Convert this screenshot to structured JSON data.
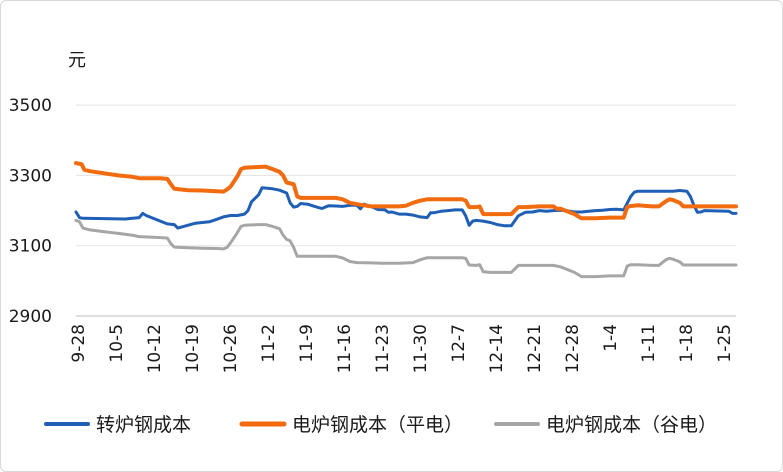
{
  "chart_data": {
    "type": "line",
    "title": "",
    "xlabel": "",
    "ylabel": "元",
    "ylim": [
      2900,
      3600
    ],
    "yticks": [
      2900,
      3100,
      3300,
      3500
    ],
    "x_categories": [
      "9-28",
      "10-5",
      "10-12",
      "10-19",
      "10-26",
      "11-2",
      "11-9",
      "11-16",
      "11-23",
      "11-30",
      "12-7",
      "12-14",
      "12-21",
      "12-28",
      "1-4",
      "1-11",
      "1-18",
      "1-25"
    ],
    "x_range": [
      0,
      94
    ],
    "legend_position": "bottom",
    "colors": {
      "bof": "#1f5fb5",
      "eaf_flat": "#f26b0f",
      "eaf_valley": "#a6a6a6"
    },
    "series": [
      {
        "name": "转炉钢成本",
        "color": "#1f5fb5",
        "points": [
          [
            0,
            3196
          ],
          [
            0.5,
            3180
          ],
          [
            1,
            3178
          ],
          [
            7,
            3176
          ],
          [
            9,
            3180
          ],
          [
            9.5,
            3192
          ],
          [
            10,
            3186
          ],
          [
            12,
            3170
          ],
          [
            13,
            3162
          ],
          [
            14,
            3160
          ],
          [
            14.5,
            3150
          ],
          [
            17,
            3164
          ],
          [
            18,
            3166
          ],
          [
            19,
            3168
          ],
          [
            20,
            3175
          ],
          [
            21,
            3182
          ],
          [
            22,
            3186
          ],
          [
            23,
            3186
          ],
          [
            24,
            3190
          ],
          [
            24.5,
            3200
          ],
          [
            25,
            3225
          ],
          [
            26,
            3245
          ],
          [
            26.5,
            3265
          ],
          [
            28,
            3262
          ],
          [
            29,
            3258
          ],
          [
            30,
            3250
          ],
          [
            30.5,
            3222
          ],
          [
            31,
            3210
          ],
          [
            31.5,
            3212
          ],
          [
            32,
            3220
          ],
          [
            33,
            3218
          ],
          [
            34,
            3212
          ],
          [
            35,
            3206
          ],
          [
            36,
            3214
          ],
          [
            37,
            3213
          ],
          [
            38,
            3212
          ],
          [
            39,
            3215
          ],
          [
            40,
            3215
          ],
          [
            40.5,
            3205
          ],
          [
            41,
            3218
          ],
          [
            42,
            3212
          ],
          [
            43,
            3203
          ],
          [
            44,
            3202
          ],
          [
            44.5,
            3195
          ],
          [
            45,
            3196
          ],
          [
            46,
            3190
          ],
          [
            47,
            3190
          ],
          [
            48,
            3187
          ],
          [
            49,
            3182
          ],
          [
            50,
            3180
          ],
          [
            50.5,
            3194
          ],
          [
            51,
            3194
          ],
          [
            52,
            3198
          ],
          [
            53,
            3200
          ],
          [
            54,
            3202
          ],
          [
            55,
            3202
          ],
          [
            55.5,
            3185
          ],
          [
            56,
            3158
          ],
          [
            56.5,
            3170
          ],
          [
            57,
            3172
          ],
          [
            58,
            3170
          ],
          [
            59,
            3166
          ],
          [
            60,
            3160
          ],
          [
            61,
            3157
          ],
          [
            62,
            3157
          ],
          [
            63,
            3185
          ],
          [
            64,
            3195
          ],
          [
            65,
            3196
          ],
          [
            66,
            3200
          ],
          [
            67,
            3198
          ],
          [
            68,
            3200
          ],
          [
            69,
            3201
          ],
          [
            70,
            3199
          ],
          [
            71,
            3196
          ],
          [
            72,
            3196
          ],
          [
            73,
            3198
          ],
          [
            74,
            3200
          ],
          [
            75,
            3201
          ],
          [
            76,
            3203
          ],
          [
            77,
            3204
          ],
          [
            78,
            3202
          ],
          [
            79,
            3240
          ],
          [
            79.5,
            3252
          ],
          [
            80,
            3255
          ],
          [
            83,
            3255
          ],
          [
            85,
            3255
          ],
          [
            86,
            3257
          ],
          [
            87,
            3255
          ],
          [
            87.5,
            3240
          ],
          [
            88,
            3215
          ],
          [
            88.5,
            3195
          ],
          [
            89,
            3196
          ],
          [
            89.5,
            3200
          ],
          [
            93,
            3198
          ],
          [
            93.5,
            3192
          ],
          [
            94,
            3192
          ]
        ]
      },
      {
        "name": "电炉钢成本（平电）",
        "color": "#f26b0f",
        "points": [
          [
            0,
            3335
          ],
          [
            0.8,
            3332
          ],
          [
            1.2,
            3316
          ],
          [
            2,
            3312
          ],
          [
            4,
            3306
          ],
          [
            6,
            3300
          ],
          [
            8,
            3296
          ],
          [
            9,
            3292
          ],
          [
            11,
            3292
          ],
          [
            12,
            3292
          ],
          [
            13,
            3290
          ],
          [
            13.5,
            3275
          ],
          [
            14,
            3262
          ],
          [
            16,
            3258
          ],
          [
            18,
            3257
          ],
          [
            20,
            3255
          ],
          [
            21,
            3254
          ],
          [
            21.5,
            3260
          ],
          [
            22,
            3268
          ],
          [
            23,
            3298
          ],
          [
            23.5,
            3318
          ],
          [
            24,
            3322
          ],
          [
            26,
            3324
          ],
          [
            27,
            3325
          ],
          [
            28,
            3318
          ],
          [
            29,
            3310
          ],
          [
            29.5,
            3300
          ],
          [
            30,
            3280
          ],
          [
            31,
            3275
          ],
          [
            31.5,
            3240
          ],
          [
            32,
            3236
          ],
          [
            34,
            3236
          ],
          [
            37,
            3236
          ],
          [
            38,
            3232
          ],
          [
            39,
            3222
          ],
          [
            40,
            3218
          ],
          [
            42,
            3212
          ],
          [
            44,
            3212
          ],
          [
            46,
            3212
          ],
          [
            47,
            3214
          ],
          [
            48,
            3222
          ],
          [
            49,
            3228
          ],
          [
            50,
            3232
          ],
          [
            52,
            3232
          ],
          [
            55,
            3232
          ],
          [
            55.5,
            3228
          ],
          [
            56,
            3210
          ],
          [
            57,
            3210
          ],
          [
            57.5,
            3212
          ],
          [
            58,
            3190
          ],
          [
            59,
            3190
          ],
          [
            61,
            3190
          ],
          [
            62,
            3190
          ],
          [
            63,
            3210
          ],
          [
            64,
            3210
          ],
          [
            66,
            3212
          ],
          [
            68,
            3212
          ],
          [
            68.5,
            3205
          ],
          [
            69,
            3205
          ],
          [
            71,
            3190
          ],
          [
            72,
            3178
          ],
          [
            73,
            3178
          ],
          [
            74,
            3178
          ],
          [
            76,
            3180
          ],
          [
            77,
            3180
          ],
          [
            78,
            3180
          ],
          [
            78.5,
            3210
          ],
          [
            79,
            3213
          ],
          [
            80,
            3215
          ],
          [
            82,
            3212
          ],
          [
            83,
            3212
          ],
          [
            84,
            3226
          ],
          [
            84.5,
            3232
          ],
          [
            85,
            3230
          ],
          [
            86,
            3222
          ],
          [
            86.5,
            3212
          ],
          [
            87,
            3212
          ],
          [
            88,
            3212
          ],
          [
            90,
            3212
          ],
          [
            92,
            3212
          ],
          [
            94,
            3212
          ]
        ]
      },
      {
        "name": "电炉钢成本（谷电）",
        "color": "#a6a6a6",
        "points": [
          [
            0,
            3172
          ],
          [
            0.5,
            3168
          ],
          [
            1,
            3150
          ],
          [
            2,
            3145
          ],
          [
            4,
            3140
          ],
          [
            6,
            3135
          ],
          [
            8,
            3130
          ],
          [
            9,
            3126
          ],
          [
            11,
            3124
          ],
          [
            12,
            3123
          ],
          [
            13,
            3122
          ],
          [
            13.5,
            3106
          ],
          [
            14,
            3096
          ],
          [
            16,
            3094
          ],
          [
            18,
            3093
          ],
          [
            20,
            3092
          ],
          [
            21,
            3091
          ],
          [
            21.5,
            3095
          ],
          [
            22,
            3108
          ],
          [
            23,
            3138
          ],
          [
            23.5,
            3155
          ],
          [
            24,
            3158
          ],
          [
            26,
            3160
          ],
          [
            27,
            3160
          ],
          [
            28,
            3155
          ],
          [
            29,
            3148
          ],
          [
            29.5,
            3130
          ],
          [
            30,
            3118
          ],
          [
            30.5,
            3114
          ],
          [
            31,
            3095
          ],
          [
            31.5,
            3070
          ],
          [
            32,
            3070
          ],
          [
            34,
            3070
          ],
          [
            37,
            3070
          ],
          [
            38,
            3065
          ],
          [
            39,
            3055
          ],
          [
            40,
            3052
          ],
          [
            42,
            3051
          ],
          [
            44,
            3050
          ],
          [
            46,
            3050
          ],
          [
            48,
            3052
          ],
          [
            49,
            3060
          ],
          [
            50,
            3066
          ],
          [
            52,
            3066
          ],
          [
            55,
            3066
          ],
          [
            55.5,
            3064
          ],
          [
            56,
            3045
          ],
          [
            57,
            3044
          ],
          [
            57.5,
            3046
          ],
          [
            58,
            3026
          ],
          [
            59,
            3024
          ],
          [
            61,
            3024
          ],
          [
            62,
            3024
          ],
          [
            63,
            3044
          ],
          [
            64,
            3044
          ],
          [
            66,
            3044
          ],
          [
            68,
            3044
          ],
          [
            69,
            3040
          ],
          [
            71,
            3024
          ],
          [
            72,
            3012
          ],
          [
            73,
            3012
          ],
          [
            74,
            3012
          ],
          [
            76,
            3014
          ],
          [
            77,
            3014
          ],
          [
            78,
            3014
          ],
          [
            78.5,
            3042
          ],
          [
            79,
            3046
          ],
          [
            80,
            3046
          ],
          [
            82,
            3044
          ],
          [
            83,
            3044
          ],
          [
            84,
            3060
          ],
          [
            84.5,
            3064
          ],
          [
            85,
            3062
          ],
          [
            86,
            3054
          ],
          [
            86.5,
            3045
          ],
          [
            87,
            3045
          ],
          [
            88,
            3045
          ],
          [
            90,
            3045
          ],
          [
            92,
            3045
          ],
          [
            94,
            3045
          ]
        ]
      }
    ]
  }
}
